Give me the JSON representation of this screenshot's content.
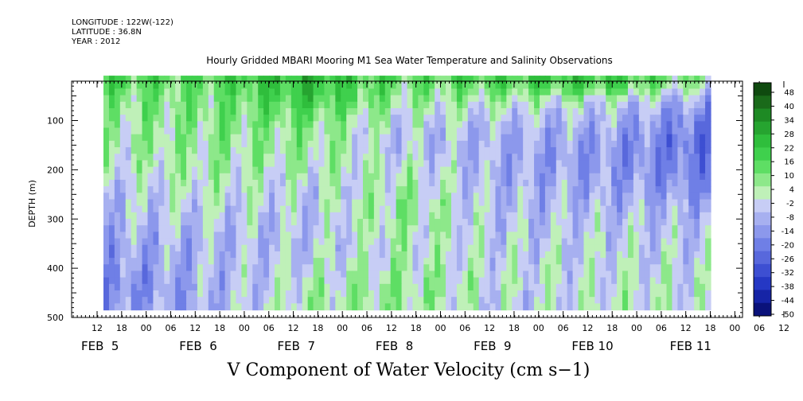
{
  "header": {
    "longitude": "LONGITUDE : 122W(-122)",
    "latitude": "LATITUDE : 36.8N",
    "year": "YEAR : 2012"
  },
  "chart_data": {
    "type": "heatmap",
    "title": "Hourly Gridded MBARI Mooring M1 Sea Water Temperature and Salinity Observations",
    "xlabel": "V Component of Water Velocity (cm s−1)",
    "ylabel": "DEPTH (m)",
    "y_axis": {
      "ticks": [
        100,
        200,
        300,
        400,
        500
      ],
      "range": [
        20,
        500
      ],
      "inverted": true
    },
    "x_axis": {
      "range_hours": [
        "FEB 4 06:00",
        "FEB 11 30:00"
      ],
      "hour_tick_labels": [
        "12",
        "18",
        "00",
        "06",
        "12",
        "18",
        "00",
        "06",
        "12",
        "18",
        "00",
        "06",
        "12",
        "18",
        "00",
        "06",
        "12",
        "18",
        "00",
        "06",
        "12",
        "18",
        "00",
        "06",
        "12",
        "18",
        "00",
        "06",
        "12",
        "18",
        "00"
      ],
      "day_labels": [
        "FEB  5",
        "FEB  6",
        "FEB  7",
        "FEB  8",
        "FEB  9",
        "FEB 10",
        "FEB 11"
      ]
    },
    "colorbar": {
      "labels": [
        "48",
        "40",
        "34",
        "28",
        "22",
        "16",
        "10",
        "4",
        "-2",
        "-8",
        "-14",
        "-20",
        "-26",
        "-32",
        "-38",
        "-44",
        "-50"
      ],
      "range": [
        -50,
        48
      ],
      "colors": [
        "#0f4a0f",
        "#1a6a1a",
        "#1e8a24",
        "#26a430",
        "#2fbe3c",
        "#3fd04d",
        "#5ede64",
        "#8de88a",
        "#bff0b8",
        "#c7cdf5",
        "#a7b0f0",
        "#8c98ec",
        "#6f7fe6",
        "#5868dc",
        "#3d4fd2",
        "#2538c4",
        "#1624a6",
        "#0a127a"
      ]
    },
    "series_description_values": {
      "depths_m": [
        25,
        50,
        75,
        100,
        125,
        150,
        175,
        200,
        225,
        250,
        275,
        300,
        325,
        350,
        375,
        400,
        425,
        450,
        475
      ],
      "days": [
        "FEB 5",
        "FEB 6",
        "FEB 7",
        "FEB 8",
        "FEB 9",
        "FEB 10",
        "FEB 11"
      ],
      "values_cm_s": [
        [
          16,
          14,
          24,
          12,
          18,
          20,
          6
        ],
        [
          12,
          10,
          22,
          8,
          12,
          14,
          -4
        ],
        [
          8,
          8,
          18,
          4,
          2,
          -2,
          -12
        ],
        [
          6,
          8,
          12,
          0,
          -4,
          -6,
          -18
        ],
        [
          4,
          6,
          8,
          -4,
          -8,
          -10,
          -22
        ],
        [
          4,
          6,
          6,
          -6,
          -10,
          -12,
          -24
        ],
        [
          2,
          4,
          4,
          -4,
          -10,
          -14,
          -22
        ],
        [
          0,
          4,
          2,
          0,
          -10,
          -14,
          -20
        ],
        [
          -4,
          2,
          -2,
          2,
          -10,
          -12,
          -18
        ],
        [
          -6,
          0,
          -4,
          4,
          -8,
          -10,
          -14
        ],
        [
          -8,
          -2,
          -4,
          6,
          -8,
          -8,
          -10
        ],
        [
          -8,
          -4,
          -6,
          6,
          -6,
          -6,
          -8
        ],
        [
          -10,
          -6,
          -6,
          4,
          -6,
          -4,
          -6
        ],
        [
          -12,
          -8,
          -6,
          2,
          -4,
          -4,
          -4
        ],
        [
          -14,
          -8,
          -4,
          2,
          -4,
          -2,
          -4
        ],
        [
          -16,
          -8,
          -2,
          4,
          -2,
          -2,
          -2
        ],
        [
          -18,
          -10,
          0,
          6,
          -2,
          0,
          -2
        ],
        [
          -16,
          -10,
          2,
          6,
          -4,
          0,
          -2
        ],
        [
          -14,
          -10,
          4,
          4,
          -4,
          0,
          0
        ]
      ]
    }
  }
}
